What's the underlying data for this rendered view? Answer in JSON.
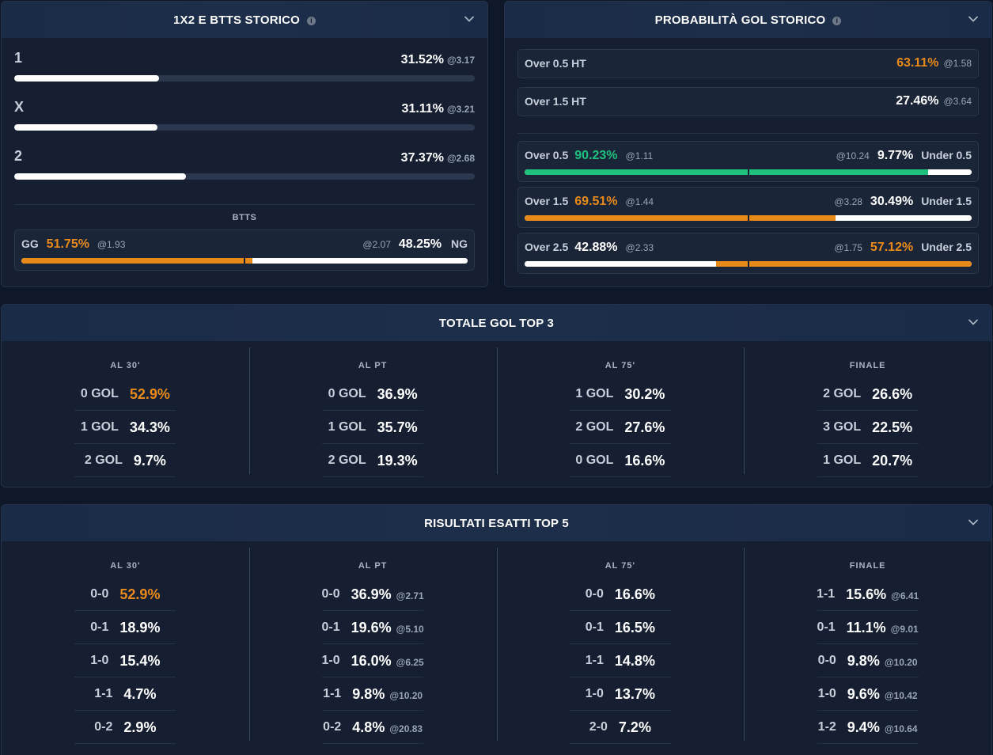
{
  "panel_1x2": {
    "title": "1X2 E BTTS STORICO",
    "info": "i",
    "rows": [
      {
        "label": "1",
        "pct": "31.52%",
        "odds": "@3.17",
        "fill": 0.3152
      },
      {
        "label": "X",
        "pct": "31.11%",
        "odds": "@3.21",
        "fill": 0.3111
      },
      {
        "label": "2",
        "pct": "37.37%",
        "odds": "@2.68",
        "fill": 0.3737
      }
    ],
    "btts_title": "BTTS",
    "btts": {
      "left_label": "GG",
      "left_pct": "51.75%",
      "left_odds": "@1.93",
      "right_odds": "@2.07",
      "right_pct": "48.25%",
      "right_label": "NG",
      "left_fill": 0.5175,
      "left_color": "#e88a1a",
      "right_color": "#ffffff"
    }
  },
  "panel_prob": {
    "title": "PROBABILITÀ GOL STORICO",
    "info": "i",
    "ht": [
      {
        "label": "Over 0.5 HT",
        "pct": "63.11%",
        "odds": "@1.58",
        "color": "#e88a1a"
      },
      {
        "label": "Over 1.5 HT",
        "pct": "27.46%",
        "odds": "@3.64",
        "color": "#ffffff"
      }
    ],
    "ft": [
      {
        "left_label": "Over 0.5",
        "left_pct": "90.23%",
        "left_odds": "@1.11",
        "right_odds": "@10.24",
        "right_pct": "9.77%",
        "right_label": "Under 0.5",
        "left_fill": 0.9023,
        "left_color": "#1fc07e",
        "right_color": "#ffffff",
        "left_text": "green",
        "right_text": "white"
      },
      {
        "left_label": "Over 1.5",
        "left_pct": "69.51%",
        "left_odds": "@1.44",
        "right_odds": "@3.28",
        "right_pct": "30.49%",
        "right_label": "Under 1.5",
        "left_fill": 0.6951,
        "left_color": "#e88a1a",
        "right_color": "#ffffff",
        "left_text": "orange",
        "right_text": "white"
      },
      {
        "left_label": "Over 2.5",
        "left_pct": "42.88%",
        "left_odds": "@2.33",
        "right_odds": "@1.75",
        "right_pct": "57.12%",
        "right_label": "Under 2.5",
        "left_fill": 0.4288,
        "left_color": "#ffffff",
        "right_color": "#e88a1a",
        "left_text": "white",
        "right_text": "orange"
      }
    ]
  },
  "panel_totale": {
    "title": "TOTALE GOL TOP 3",
    "columns": [
      {
        "title": "AL 30'",
        "rows": [
          {
            "k": "0 GOL",
            "v": "52.9%",
            "hl": true
          },
          {
            "k": "1 GOL",
            "v": "34.3%"
          },
          {
            "k": "2 GOL",
            "v": "9.7%"
          }
        ]
      },
      {
        "title": "AL PT",
        "rows": [
          {
            "k": "0 GOL",
            "v": "36.9%"
          },
          {
            "k": "1 GOL",
            "v": "35.7%"
          },
          {
            "k": "2 GOL",
            "v": "19.3%"
          }
        ]
      },
      {
        "title": "AL 75'",
        "rows": [
          {
            "k": "1 GOL",
            "v": "30.2%"
          },
          {
            "k": "2 GOL",
            "v": "27.6%"
          },
          {
            "k": "0 GOL",
            "v": "16.6%"
          }
        ]
      },
      {
        "title": "FINALE",
        "rows": [
          {
            "k": "2 GOL",
            "v": "26.6%"
          },
          {
            "k": "3 GOL",
            "v": "22.5%"
          },
          {
            "k": "1 GOL",
            "v": "20.7%"
          }
        ]
      }
    ]
  },
  "panel_risultati": {
    "title": "RISULTATI ESATTI TOP 5",
    "columns": [
      {
        "title": "AL 30'",
        "rows": [
          {
            "k": "0-0",
            "v": "52.9%",
            "hl": true
          },
          {
            "k": "0-1",
            "v": "18.9%"
          },
          {
            "k": "1-0",
            "v": "15.4%"
          },
          {
            "k": "1-1",
            "v": "4.7%"
          },
          {
            "k": "0-2",
            "v": "2.9%"
          }
        ]
      },
      {
        "title": "AL PT",
        "rows": [
          {
            "k": "0-0",
            "v": "36.9%",
            "o": "@2.71"
          },
          {
            "k": "0-1",
            "v": "19.6%",
            "o": "@5.10"
          },
          {
            "k": "1-0",
            "v": "16.0%",
            "o": "@6.25"
          },
          {
            "k": "1-1",
            "v": "9.8%",
            "o": "@10.20"
          },
          {
            "k": "0-2",
            "v": "4.8%",
            "o": "@20.83"
          }
        ]
      },
      {
        "title": "AL 75'",
        "rows": [
          {
            "k": "0-0",
            "v": "16.6%"
          },
          {
            "k": "0-1",
            "v": "16.5%"
          },
          {
            "k": "1-1",
            "v": "14.8%"
          },
          {
            "k": "1-0",
            "v": "13.7%"
          },
          {
            "k": "2-0",
            "v": "7.2%"
          }
        ]
      },
      {
        "title": "FINALE",
        "rows": [
          {
            "k": "1-1",
            "v": "15.6%",
            "o": "@6.41"
          },
          {
            "k": "0-1",
            "v": "11.1%",
            "o": "@9.01"
          },
          {
            "k": "0-0",
            "v": "9.8%",
            "o": "@10.20"
          },
          {
            "k": "1-0",
            "v": "9.6%",
            "o": "@10.42"
          },
          {
            "k": "1-2",
            "v": "9.4%",
            "o": "@10.64"
          }
        ]
      }
    ]
  },
  "colors": {
    "orange": "#e88a1a",
    "green": "#1fc07e",
    "white": "#ffffff"
  }
}
